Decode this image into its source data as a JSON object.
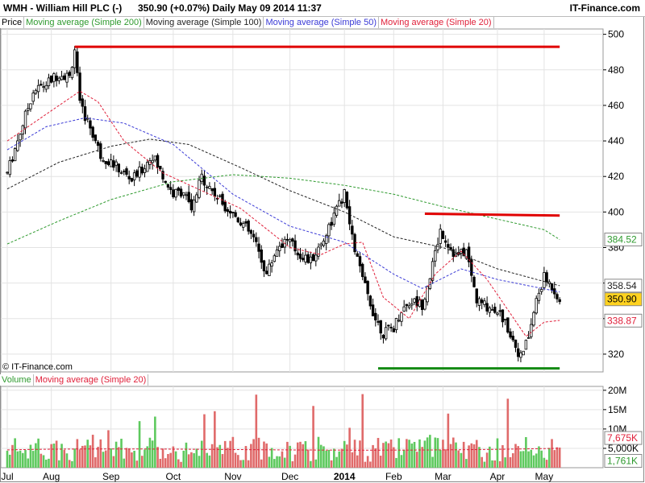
{
  "header": {
    "symbol": "WMH - William Hill PLC (-)",
    "info": "350.90 (+0.07%)    Daily  May 09 2014 11:37",
    "brand": "IT-Finance.com"
  },
  "price_legend": [
    "Price",
    "Moving average (Simple 200)",
    "Moving average (Simple 100)",
    "Moving average (Simple 50)",
    "Moving average (Simple 20)"
  ],
  "volume_legend": [
    "Volume",
    "Moving average (Simple 20)"
  ],
  "copyright": "© IT-Finance.com",
  "colors": {
    "ma200": "#2e9a2e",
    "ma100": "#222222",
    "ma50": "#3a3ad6",
    "ma20": "#e0203a",
    "up": "#5ec95e",
    "down": "#e06a6a",
    "support": "#138a13",
    "resistance": "#e00000"
  },
  "chart_data": [
    {
      "type": "line",
      "title": "WMH - William Hill PLC (-)",
      "ylim": [
        310,
        503
      ],
      "yticks": [
        500,
        480,
        460,
        440,
        420,
        400,
        380,
        360,
        340,
        320
      ],
      "xticks": [
        "Jul",
        "Aug",
        "Sep",
        "Oct",
        "Nov",
        "Dec",
        "2014",
        "Feb",
        "Mar",
        "Apr",
        "May"
      ],
      "price_labels": [
        {
          "value": 384.52,
          "text": "384.52",
          "series": "ma200"
        },
        {
          "value": 358.54,
          "text": "358.54",
          "series": "ma100"
        },
        {
          "value": 350.9,
          "text": "350.90",
          "series": "price"
        },
        {
          "value": 338.87,
          "text": "338.87",
          "series": "ma20"
        }
      ],
      "x_range": [
        0,
        226
      ],
      "x_tick_positions": [
        0,
        17,
        40,
        64,
        87,
        109,
        130,
        149,
        168,
        189,
        207
      ],
      "price": [
        {
          "x": 0,
          "y": 422
        },
        {
          "x": 5,
          "y": 445
        },
        {
          "x": 10,
          "y": 468
        },
        {
          "x": 15,
          "y": 472
        },
        {
          "x": 20,
          "y": 478
        },
        {
          "x": 24,
          "y": 476
        },
        {
          "x": 26,
          "y": 492
        },
        {
          "x": 28,
          "y": 460
        },
        {
          "x": 32,
          "y": 448
        },
        {
          "x": 36,
          "y": 432
        },
        {
          "x": 40,
          "y": 428
        },
        {
          "x": 44,
          "y": 423
        },
        {
          "x": 48,
          "y": 418
        },
        {
          "x": 52,
          "y": 424
        },
        {
          "x": 56,
          "y": 432
        },
        {
          "x": 60,
          "y": 420
        },
        {
          "x": 64,
          "y": 410
        },
        {
          "x": 68,
          "y": 412
        },
        {
          "x": 71,
          "y": 400
        },
        {
          "x": 75,
          "y": 420
        },
        {
          "x": 80,
          "y": 410
        },
        {
          "x": 85,
          "y": 402
        },
        {
          "x": 90,
          "y": 395
        },
        {
          "x": 95,
          "y": 385
        },
        {
          "x": 100,
          "y": 365
        },
        {
          "x": 104,
          "y": 380
        },
        {
          "x": 108,
          "y": 385
        },
        {
          "x": 112,
          "y": 377
        },
        {
          "x": 117,
          "y": 372
        },
        {
          "x": 121,
          "y": 382
        },
        {
          "x": 126,
          "y": 398
        },
        {
          "x": 130,
          "y": 410
        },
        {
          "x": 133,
          "y": 385
        },
        {
          "x": 137,
          "y": 362
        },
        {
          "x": 142,
          "y": 340
        },
        {
          "x": 145,
          "y": 332
        },
        {
          "x": 149,
          "y": 335
        },
        {
          "x": 152,
          "y": 345
        },
        {
          "x": 156,
          "y": 350
        },
        {
          "x": 160,
          "y": 348
        },
        {
          "x": 164,
          "y": 370
        },
        {
          "x": 167,
          "y": 390
        },
        {
          "x": 170,
          "y": 382
        },
        {
          "x": 173,
          "y": 375
        },
        {
          "x": 177,
          "y": 378
        },
        {
          "x": 181,
          "y": 350
        },
        {
          "x": 185,
          "y": 347
        },
        {
          "x": 189,
          "y": 345
        },
        {
          "x": 193,
          "y": 335
        },
        {
          "x": 196,
          "y": 325
        },
        {
          "x": 198,
          "y": 318
        },
        {
          "x": 201,
          "y": 330
        },
        {
          "x": 204,
          "y": 350
        },
        {
          "x": 207,
          "y": 363
        },
        {
          "x": 210,
          "y": 358
        },
        {
          "x": 213,
          "y": 351
        }
      ],
      "ma200": [
        {
          "x": 0,
          "y": 382
        },
        {
          "x": 20,
          "y": 395
        },
        {
          "x": 40,
          "y": 407
        },
        {
          "x": 64,
          "y": 417
        },
        {
          "x": 87,
          "y": 421
        },
        {
          "x": 109,
          "y": 419
        },
        {
          "x": 130,
          "y": 415
        },
        {
          "x": 149,
          "y": 410
        },
        {
          "x": 168,
          "y": 403
        },
        {
          "x": 189,
          "y": 396
        },
        {
          "x": 207,
          "y": 390
        },
        {
          "x": 213,
          "y": 384.5
        }
      ],
      "ma100": [
        {
          "x": 0,
          "y": 413
        },
        {
          "x": 20,
          "y": 428
        },
        {
          "x": 40,
          "y": 437
        },
        {
          "x": 55,
          "y": 441
        },
        {
          "x": 70,
          "y": 438
        },
        {
          "x": 90,
          "y": 425
        },
        {
          "x": 109,
          "y": 412
        },
        {
          "x": 130,
          "y": 400
        },
        {
          "x": 149,
          "y": 386
        },
        {
          "x": 168,
          "y": 380
        },
        {
          "x": 189,
          "y": 368
        },
        {
          "x": 213,
          "y": 358.5
        }
      ],
      "ma50": [
        {
          "x": 0,
          "y": 435
        },
        {
          "x": 15,
          "y": 448
        },
        {
          "x": 30,
          "y": 453
        },
        {
          "x": 45,
          "y": 450
        },
        {
          "x": 64,
          "y": 438
        },
        {
          "x": 87,
          "y": 410
        },
        {
          "x": 109,
          "y": 392
        },
        {
          "x": 130,
          "y": 383
        },
        {
          "x": 149,
          "y": 365
        },
        {
          "x": 160,
          "y": 357
        },
        {
          "x": 175,
          "y": 368
        },
        {
          "x": 189,
          "y": 362
        },
        {
          "x": 213,
          "y": 355
        }
      ],
      "ma20": [
        {
          "x": 0,
          "y": 440
        },
        {
          "x": 15,
          "y": 455
        },
        {
          "x": 28,
          "y": 468
        },
        {
          "x": 35,
          "y": 462
        },
        {
          "x": 45,
          "y": 440
        },
        {
          "x": 60,
          "y": 422
        },
        {
          "x": 75,
          "y": 412
        },
        {
          "x": 90,
          "y": 402
        },
        {
          "x": 109,
          "y": 380
        },
        {
          "x": 121,
          "y": 376
        },
        {
          "x": 130,
          "y": 382
        },
        {
          "x": 137,
          "y": 383
        },
        {
          "x": 145,
          "y": 352
        },
        {
          "x": 155,
          "y": 340
        },
        {
          "x": 165,
          "y": 365
        },
        {
          "x": 175,
          "y": 378
        },
        {
          "x": 185,
          "y": 362
        },
        {
          "x": 193,
          "y": 345
        },
        {
          "x": 200,
          "y": 330
        },
        {
          "x": 207,
          "y": 338
        },
        {
          "x": 213,
          "y": 339
        }
      ],
      "hlines": [
        {
          "x0": 26,
          "x1": 213,
          "y0": 493,
          "y1": 493,
          "kind": "resistance"
        },
        {
          "x0": 161,
          "x1": 213,
          "y0": 399,
          "y1": 398,
          "kind": "resistance"
        },
        {
          "x0": 143,
          "x1": 213,
          "y0": 312,
          "y1": 312,
          "kind": "support"
        }
      ]
    },
    {
      "type": "bar",
      "title": "Volume",
      "ylim": [
        0,
        21000000
      ],
      "yticks": [
        {
          "value": 20000000,
          "text": "20M"
        },
        {
          "value": 15000000,
          "text": "15M"
        },
        {
          "value": 10000000,
          "text": "10M"
        },
        {
          "value": 5000000,
          "text": "5,000K"
        }
      ],
      "value_labels": [
        {
          "value": 7675000,
          "text": "7,675K"
        },
        {
          "value": 1761000,
          "text": "1,761K"
        }
      ],
      "ma20_level": 4600000
    }
  ]
}
